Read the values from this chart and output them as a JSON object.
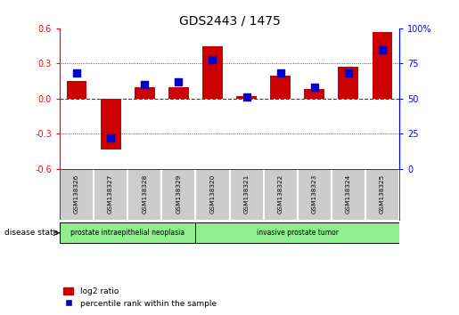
{
  "title": "GDS2443 / 1475",
  "samples": [
    "GSM138326",
    "GSM138327",
    "GSM138328",
    "GSM138329",
    "GSM138320",
    "GSM138321",
    "GSM138322",
    "GSM138323",
    "GSM138324",
    "GSM138325"
  ],
  "log2_ratio": [
    0.15,
    -0.43,
    0.1,
    0.1,
    0.45,
    0.02,
    0.2,
    0.08,
    0.27,
    0.57
  ],
  "percentile_rank": [
    68,
    22,
    60,
    62,
    78,
    51,
    68,
    58,
    68,
    85
  ],
  "disease_groups": [
    {
      "label": "prostate intraepithelial neoplasia",
      "start": 0,
      "end": 4,
      "color": "#90ee90"
    },
    {
      "label": "invasive prostate tumor",
      "start": 4,
      "end": 10,
      "color": "#90ee90"
    }
  ],
  "ylim_left": [
    -0.6,
    0.6
  ],
  "ylim_right": [
    0,
    100
  ],
  "yticks_left": [
    -0.6,
    -0.3,
    0.0,
    0.3,
    0.6
  ],
  "yticks_right": [
    0,
    25,
    50,
    75,
    100
  ],
  "ytick_labels_right": [
    "0",
    "25",
    "50",
    "75",
    "100%"
  ],
  "bar_color": "#cc0000",
  "dot_color": "#0000cc",
  "zero_line_color": "#cc0000",
  "grid_line_color": "#000000",
  "bg_color": "#ffffff",
  "sample_bg_color": "#cccccc",
  "legend_red_label": "log2 ratio",
  "legend_blue_label": "percentile rank within the sample",
  "bar_width": 0.6,
  "disease_state_label": "disease state"
}
